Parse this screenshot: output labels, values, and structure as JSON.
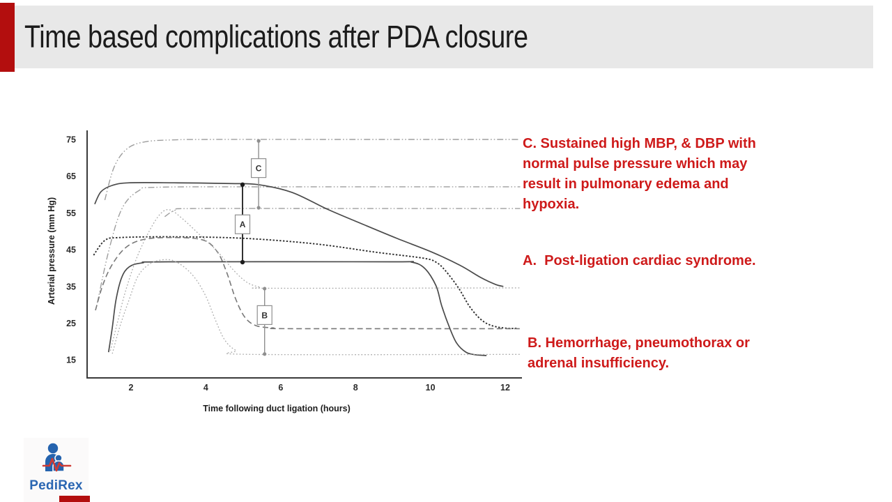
{
  "slide": {
    "title": "Time based complications after PDA closure",
    "accent_color": "#b30e0e",
    "banner_bg": "#e8e8e8"
  },
  "chart": {
    "y_axis_label": "Arterial pressure (mm Hg)",
    "x_axis_label": "Time following duct ligation (hours)",
    "y_ticks": [
      "75",
      "65",
      "55",
      "45",
      "35",
      "25",
      "15"
    ],
    "x_ticks": [
      "2",
      "4",
      "6",
      "8",
      "10",
      "12"
    ]
  },
  "chart_data": {
    "type": "line",
    "title": "",
    "xlabel": "Time following duct ligation (hours)",
    "ylabel": "Arterial pressure (mm Hg)",
    "xlim": [
      0,
      12.4
    ],
    "ylim": [
      10,
      77
    ],
    "grid": false,
    "legend": "none",
    "series": [
      {
        "name": "Sustained high SBP (scenario C)",
        "style": "dashdotdot",
        "points": [
          [
            1.3,
            58.5
          ],
          [
            1.55,
            67.5
          ],
          [
            1.9,
            72.5
          ],
          [
            2.4,
            74.4
          ],
          [
            3.2,
            74.9
          ],
          [
            4.1,
            75
          ],
          [
            8,
            75
          ],
          [
            12.4,
            75
          ]
        ]
      },
      {
        "name": "Sustained high MBP (scenario C)",
        "style": "dashdotdot",
        "points": [
          [
            1.1,
            30.5
          ],
          [
            1.4,
            44.5
          ],
          [
            1.75,
            56
          ],
          [
            2.2,
            61
          ],
          [
            2.75,
            62
          ],
          [
            6,
            62.1
          ],
          [
            12.4,
            62.1
          ]
        ]
      },
      {
        "name": "Sustained high DBP (scenario C)",
        "style": "dashdotdot",
        "points": [
          [
            2.9,
            54
          ],
          [
            3.2,
            55.8
          ],
          [
            3.7,
            56.2
          ],
          [
            8,
            56.2
          ],
          [
            12.4,
            56.2
          ]
        ]
      },
      {
        "name": "SBP usual course",
        "style": "solid",
        "points": [
          [
            1.03,
            57.4
          ],
          [
            1.2,
            60.8
          ],
          [
            1.5,
            62.5
          ],
          [
            1.95,
            63.2
          ],
          [
            3.15,
            63.2
          ],
          [
            4.65,
            63
          ],
          [
            5.4,
            62.7
          ],
          [
            6.3,
            60.6
          ],
          [
            7.25,
            56
          ],
          [
            8.2,
            51.9
          ],
          [
            9.1,
            48.1
          ],
          [
            10.05,
            44.3
          ],
          [
            10.8,
            40.7
          ],
          [
            11.35,
            37.4
          ],
          [
            11.75,
            35.5
          ],
          [
            11.95,
            35
          ]
        ]
      },
      {
        "name": "MBP usual course",
        "style": "dotted",
        "points": [
          [
            1.0,
            43.5
          ],
          [
            1.3,
            47.5
          ],
          [
            1.7,
            48.3
          ],
          [
            3.15,
            48.5
          ],
          [
            5.0,
            48.1
          ],
          [
            6.9,
            46.6
          ],
          [
            8.55,
            44.3
          ],
          [
            9.8,
            42.7
          ],
          [
            10.15,
            41.6
          ],
          [
            10.4,
            39.3
          ],
          [
            10.75,
            34.6
          ],
          [
            11.05,
            29.5
          ],
          [
            11.35,
            26
          ],
          [
            11.65,
            24.3
          ],
          [
            12.05,
            23.6
          ],
          [
            12.3,
            23.6
          ]
        ]
      },
      {
        "name": "Low MBP (scenario B)",
        "style": "dashed",
        "points": [
          [
            1.05,
            28.5
          ],
          [
            1.25,
            35.5
          ],
          [
            1.5,
            41
          ],
          [
            1.85,
            45.5
          ],
          [
            2.3,
            47.7
          ],
          [
            3.0,
            48.3
          ],
          [
            3.9,
            47.7
          ],
          [
            4.3,
            44.5
          ],
          [
            4.55,
            39
          ],
          [
            4.8,
            31.5
          ],
          [
            5.05,
            26.5
          ],
          [
            5.35,
            24.3
          ],
          [
            5.8,
            23.7
          ],
          [
            6.3,
            23.5
          ],
          [
            12.4,
            23.5
          ]
        ]
      },
      {
        "name": "DBP usual course",
        "style": "solid",
        "points": [
          [
            1.4,
            17.1
          ],
          [
            1.5,
            23.8
          ],
          [
            1.6,
            31.4
          ],
          [
            1.75,
            37.4
          ],
          [
            1.95,
            40.3
          ],
          [
            2.3,
            41.4
          ],
          [
            3.0,
            41.7
          ],
          [
            8.9,
            41.7
          ],
          [
            9.5,
            41.6
          ],
          [
            9.85,
            39.9
          ],
          [
            10.15,
            35.2
          ],
          [
            10.3,
            29.8
          ],
          [
            10.5,
            24.1
          ],
          [
            10.7,
            19.6
          ],
          [
            10.95,
            17.1
          ],
          [
            11.2,
            16.4
          ],
          [
            11.5,
            16.2
          ]
        ]
      },
      {
        "name": "Low SBP (scenario B)",
        "style": "finedotted",
        "points": [
          [
            1.45,
            17.5
          ],
          [
            1.65,
            25.7
          ],
          [
            1.85,
            33.6
          ],
          [
            2.15,
            42.7
          ],
          [
            2.5,
            50.3
          ],
          [
            2.8,
            54.9
          ],
          [
            3.05,
            55.8
          ],
          [
            3.4,
            53.2
          ],
          [
            3.8,
            49.4
          ],
          [
            4.3,
            44.6
          ],
          [
            4.75,
            39.3
          ],
          [
            5.1,
            36.1
          ],
          [
            5.45,
            34.8
          ],
          [
            5.8,
            34.5
          ],
          [
            12.4,
            34.6
          ]
        ]
      },
      {
        "name": "Low DBP (scenario B)",
        "style": "finedotted",
        "points": [
          [
            1.5,
            16.7
          ],
          [
            1.7,
            24
          ],
          [
            1.95,
            31.4
          ],
          [
            2.2,
            38
          ],
          [
            2.55,
            41.4
          ],
          [
            3.0,
            42.3
          ],
          [
            3.35,
            40.8
          ],
          [
            3.7,
            37.4
          ],
          [
            4.0,
            32.3
          ],
          [
            4.25,
            26
          ],
          [
            4.5,
            20.5
          ],
          [
            4.8,
            17.6
          ],
          [
            5.2,
            16.5
          ],
          [
            12.4,
            16.5
          ]
        ]
      }
    ],
    "error_bars": [
      {
        "label": "A",
        "h": 4.98,
        "v_low": 41.6,
        "v_high": 62.7,
        "label_v": 51.9,
        "tone": "dark"
      },
      {
        "label": "C",
        "h": 5.41,
        "v_low": 56.4,
        "v_high": 74.6,
        "label_v": 67.2,
        "tone": "light"
      },
      {
        "label": "B",
        "h": 5.57,
        "v_low": 16.6,
        "v_high": 34.4,
        "label_v": 27.2,
        "tone": "light"
      }
    ]
  },
  "annotations": {
    "color": "#ce1a1a",
    "c": "C. Sustained high MBP, & DBP with normal pulse pressure which may result in pulmonary edema and hypoxia.",
    "a": "A.  Post-ligation cardiac syndrome.",
    "b": "B. Hemorrhage, pneumothorax or adrenal insufficiency."
  },
  "logo": {
    "text": "PediRex",
    "text_color": "#2a66b2",
    "figure_color": "#2563ae",
    "ecg_color": "#cf3b33"
  }
}
